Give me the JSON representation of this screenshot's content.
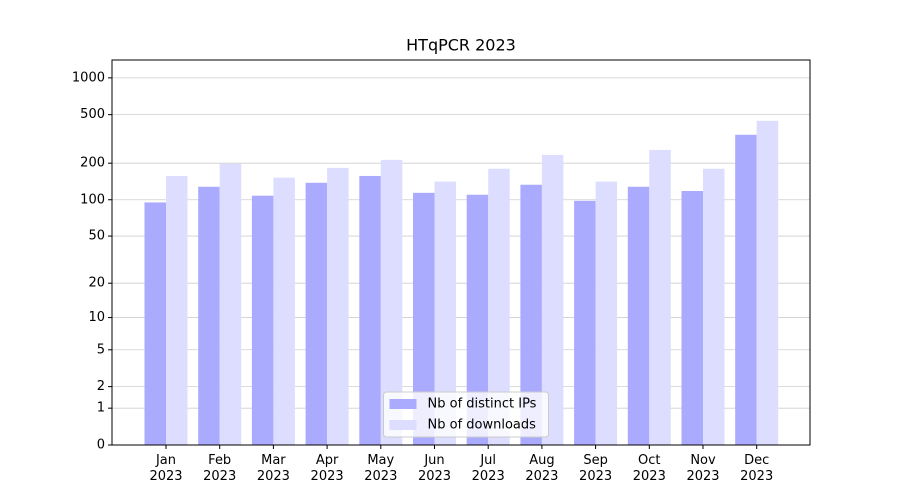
{
  "chart_data": {
    "type": "bar",
    "title": "HTqPCR 2023",
    "categories": [
      "Jan\n2023",
      "Feb\n2023",
      "Mar\n2023",
      "Apr\n2023",
      "May\n2023",
      "Jun\n2023",
      "Jul\n2023",
      "Aug\n2023",
      "Sep\n2023",
      "Oct\n2023",
      "Nov\n2023",
      "Dec\n2023"
    ],
    "series": [
      {
        "name": "Nb of distinct IPs",
        "color": "#aaaaff",
        "values": [
          95,
          128,
          108,
          138,
          157,
          114,
          110,
          133,
          98,
          128,
          118,
          342
        ]
      },
      {
        "name": "Nb of downloads",
        "color": "#ddddff",
        "values": [
          157,
          198,
          152,
          183,
          213,
          141,
          180,
          234,
          141,
          257,
          180,
          445
        ]
      }
    ],
    "yscale": "log1p",
    "ylim": [
      0,
      1400
    ],
    "yticks": [
      0,
      1,
      2,
      5,
      10,
      20,
      50,
      100,
      200,
      500,
      1000
    ],
    "grid": true,
    "legend": "lower center"
  }
}
